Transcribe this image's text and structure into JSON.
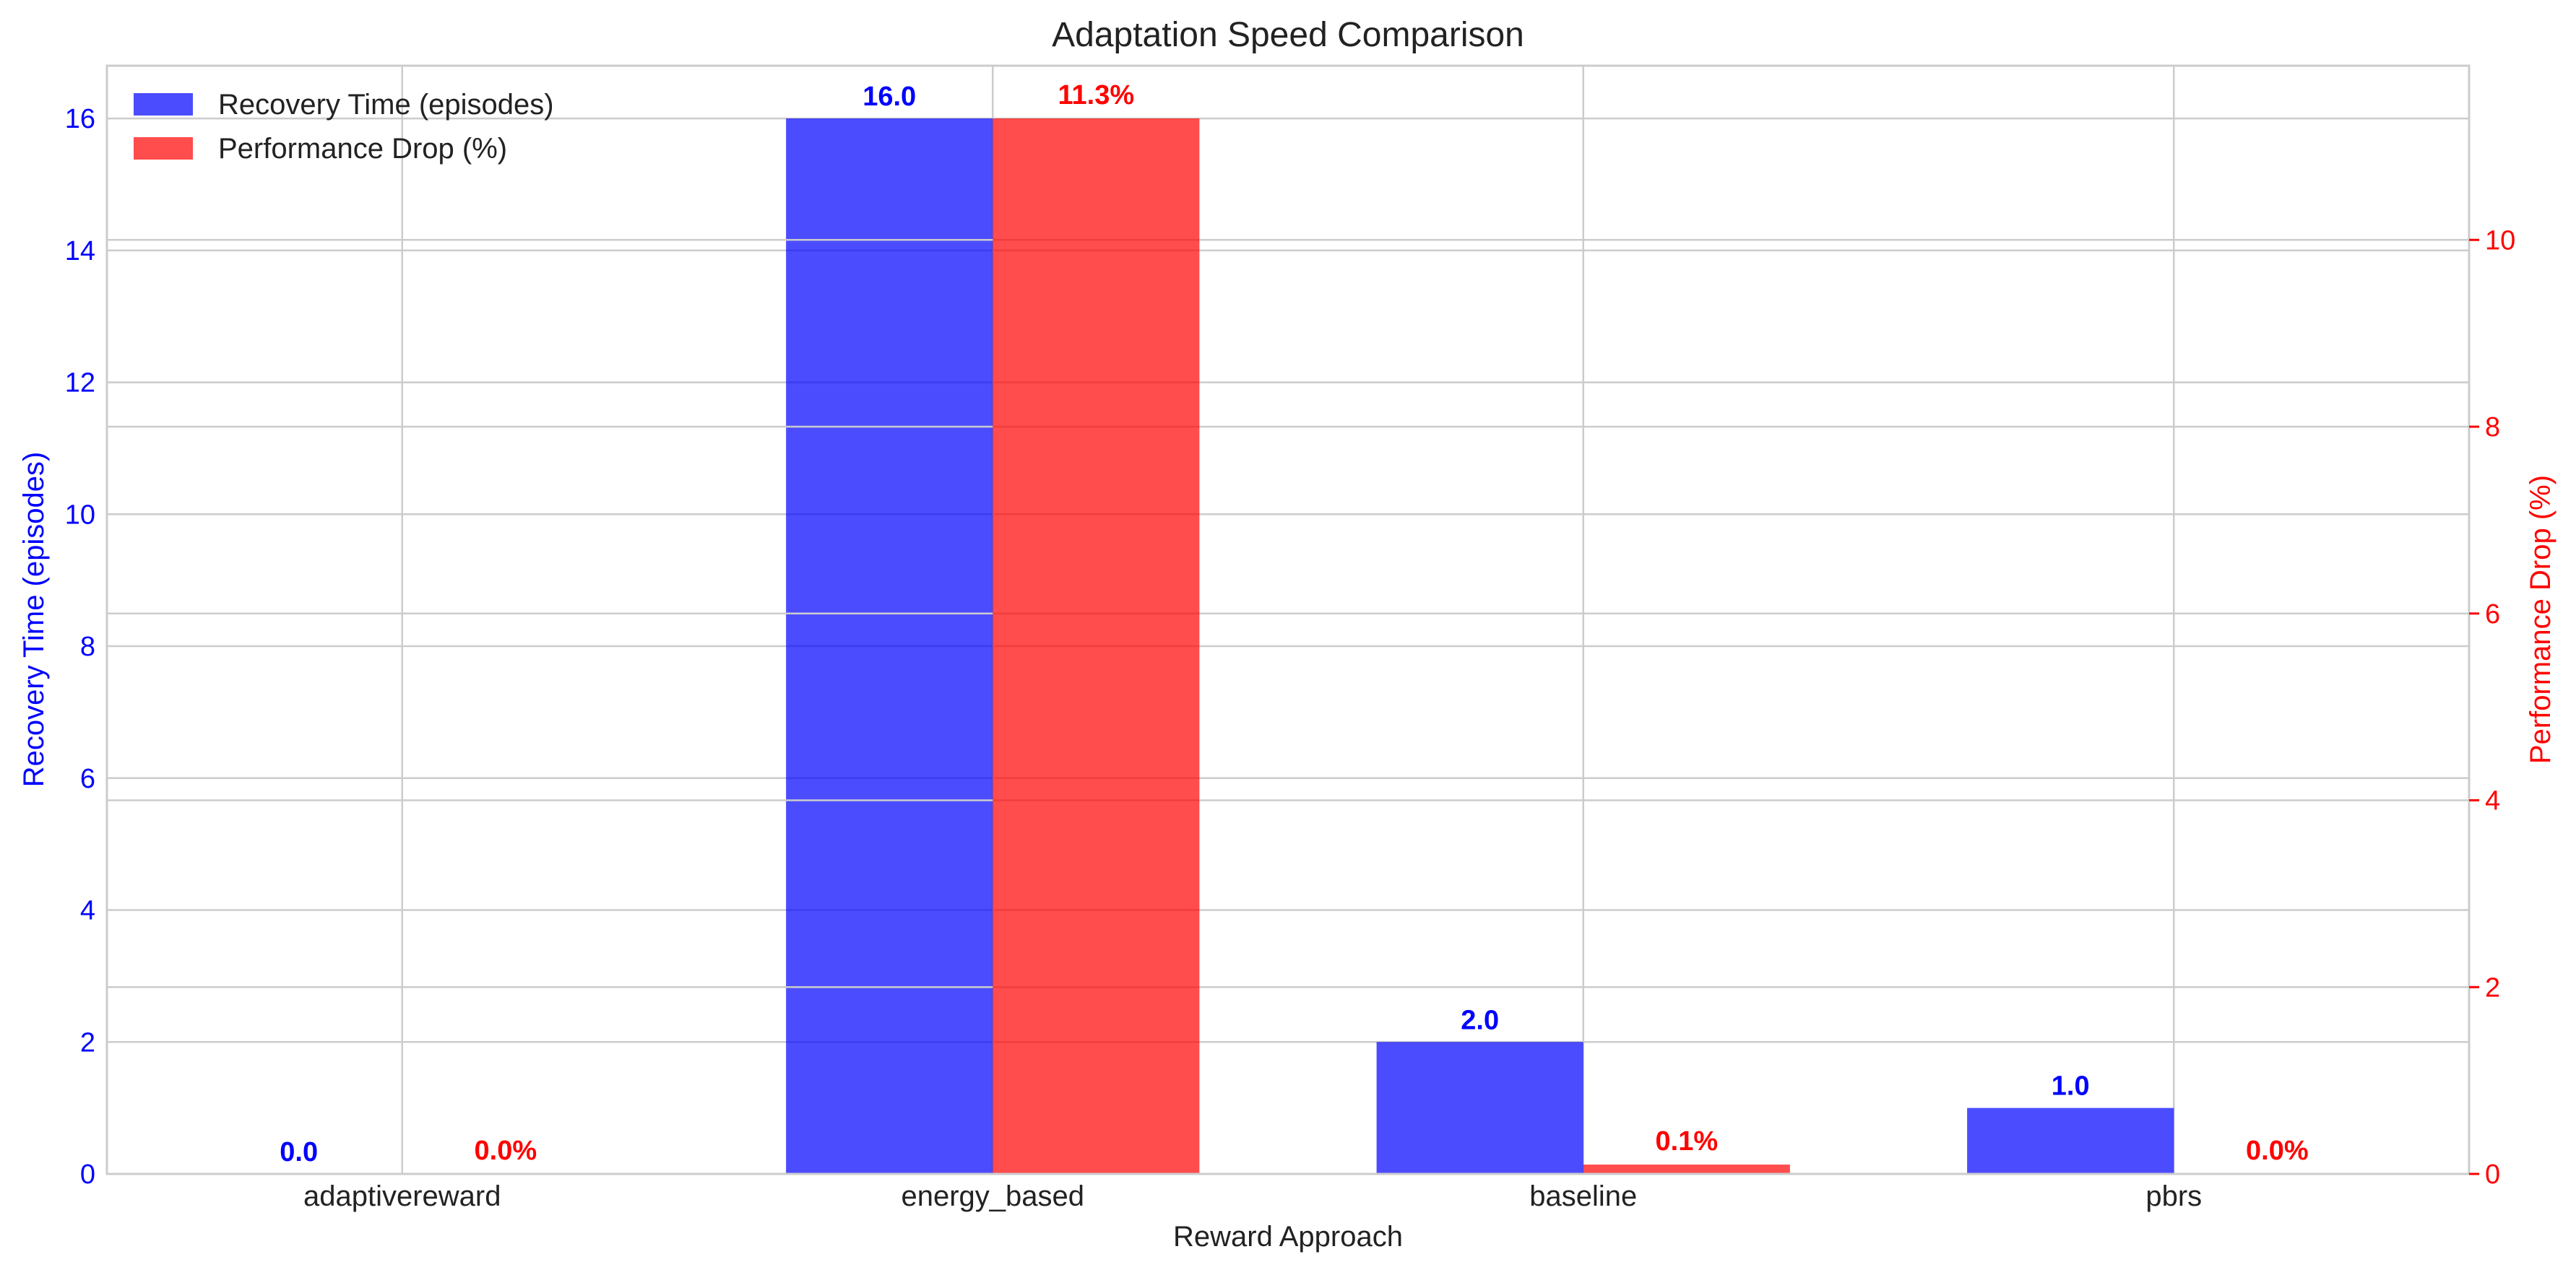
{
  "chart_data": {
    "type": "bar",
    "title": "Adaptation Speed Comparison",
    "xlabel": "Reward Approach",
    "categories": [
      "adaptivereward",
      "energy_based",
      "baseline",
      "pbrs"
    ],
    "series": [
      {
        "name": "Recovery Time (episodes)",
        "axis": "left",
        "color": "#0000ff",
        "values": [
          0.0,
          16.0,
          2.0,
          1.0
        ],
        "labels": [
          "0.0",
          "16.0",
          "2.0",
          "1.0"
        ]
      },
      {
        "name": "Performance Drop (%)",
        "axis": "right",
        "color": "#ff0000",
        "values": [
          0.0,
          11.3,
          0.1,
          0.0
        ],
        "labels": [
          "0.0%",
          "11.3%",
          "0.1%",
          "0.0%"
        ]
      }
    ],
    "y_left": {
      "label": "Recovery Time (episodes)",
      "color": "#0000ff",
      "ylim": [
        0,
        16.8
      ],
      "ticks": [
        0,
        2,
        4,
        6,
        8,
        10,
        12,
        14,
        16
      ]
    },
    "y_right": {
      "label": "Performance Drop (%)",
      "color": "#ff0000",
      "ylim": [
        0,
        11.865
      ],
      "ticks": [
        0,
        2,
        4,
        6,
        8,
        10
      ]
    },
    "legend": "upper-left",
    "grid": true
  }
}
